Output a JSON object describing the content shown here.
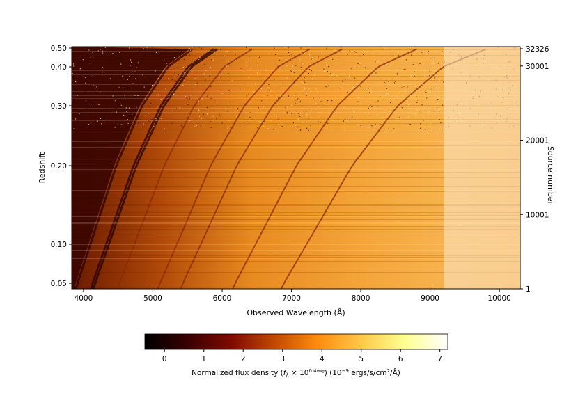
{
  "chart_data": {
    "type": "heatmap",
    "x_axis": {
      "label": "Observed Wavelength (Å)",
      "ticks": [
        4000,
        5000,
        6000,
        7000,
        8000,
        9000,
        10000
      ],
      "range": [
        3830,
        10300
      ]
    },
    "y_axis_left": {
      "label": "Redshift",
      "ticks": [
        "0.05",
        "0.10",
        "0.20",
        "0.30",
        "0.40",
        "0.50"
      ]
    },
    "y_axis_right": {
      "label": "Source number",
      "ticks": [
        "1",
        "10001",
        "20001",
        "30001",
        "32326"
      ],
      "range": [
        1,
        32326
      ]
    },
    "colorbar": {
      "label_main": "Normalized flux density (",
      "label_f": "f",
      "label_lambda": "λ",
      "label_times": " × 10",
      "label_exp": "0.4",
      "label_mag": "mag",
      "label_tail": ") (10",
      "label_unit_exp": "−9",
      "label_unit": " ergs/s/cm",
      "label_sq": "2",
      "label_end": "/Å)",
      "ticks": [
        0,
        1,
        2,
        3,
        4,
        5,
        6,
        7
      ],
      "range": [
        -0.5,
        7.2
      ],
      "colormap": "afmhot",
      "colors": [
        "#000000",
        "#3a0000",
        "#800a00",
        "#c04a00",
        "#ff8c10",
        "#ffc84a",
        "#ffff90",
        "#ffffff"
      ]
    },
    "features": [
      {
        "rest_wavelength": 3727
      },
      {
        "rest_wavelength": 3934
      },
      {
        "rest_wavelength": 3969
      },
      {
        "rest_wavelength": 4304
      },
      {
        "rest_wavelength": 4861
      },
      {
        "rest_wavelength": 5175
      },
      {
        "rest_wavelength": 5893
      },
      {
        "rest_wavelength": 6563
      }
    ],
    "detector_edge_wavelength": 9200
  }
}
